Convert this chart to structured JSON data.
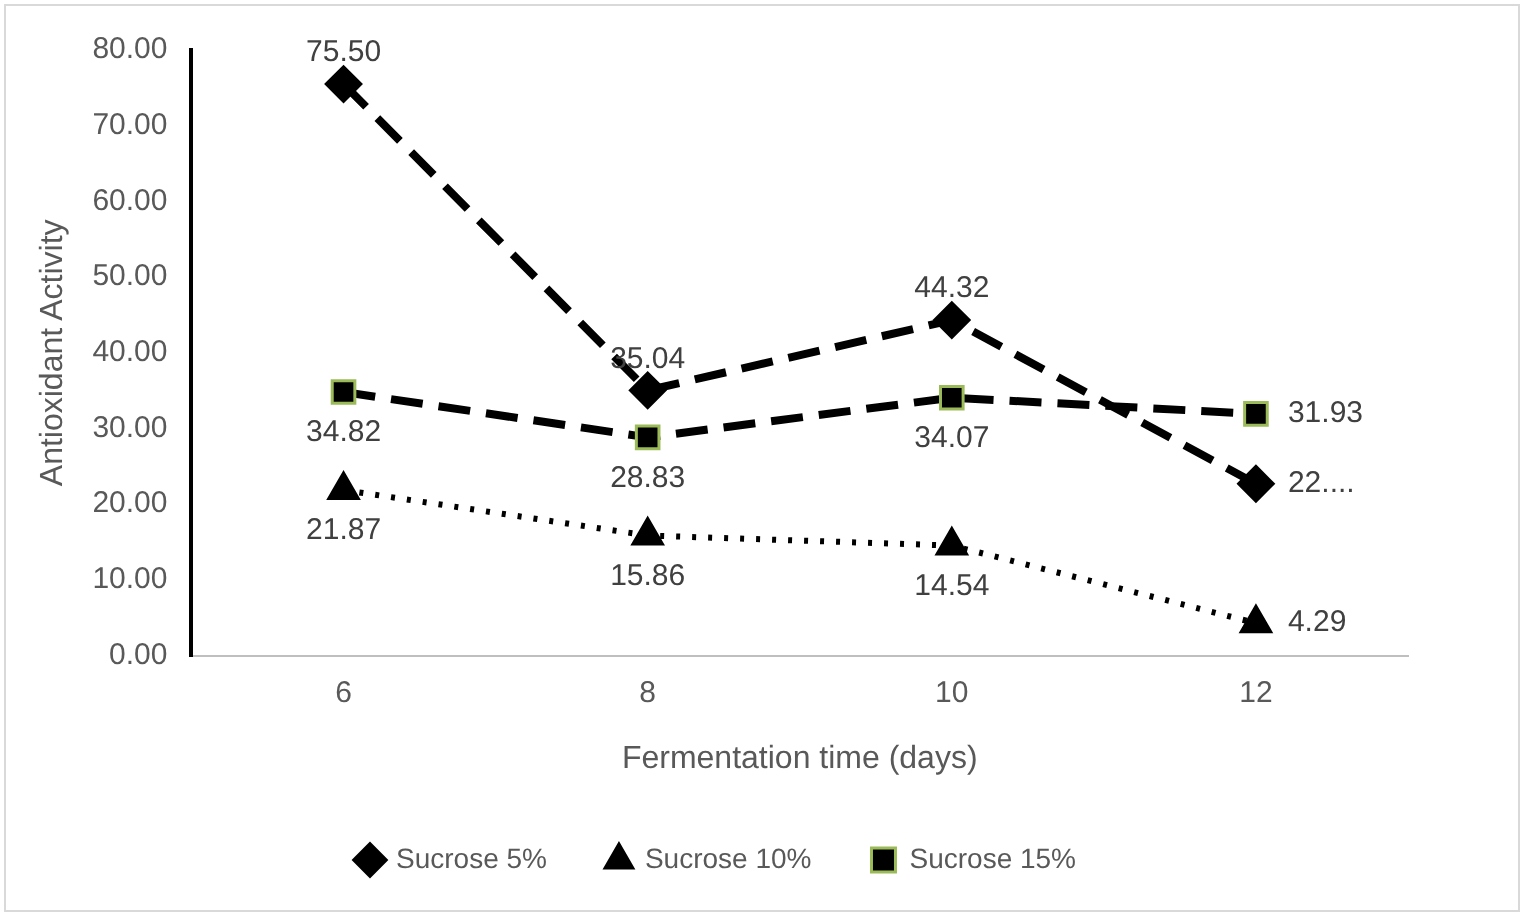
{
  "chart_data": {
    "type": "line",
    "xlabel": "Fermentation time (days)",
    "ylabel": "Antioxidant Activity",
    "categories": [
      "6",
      "8",
      "10",
      "12"
    ],
    "series": [
      {
        "name": "Sucrose 5%",
        "color": "#000000",
        "marker": "diamond",
        "line_style": "dashed",
        "values": [
          75.5,
          35.04,
          44.32,
          22.7
        ],
        "value_labels": [
          "75.50",
          "35.04",
          "44.32",
          "22...."
        ]
      },
      {
        "name": "Sucrose 10%",
        "color": "#000000",
        "marker": "triangle",
        "line_style": "dotted",
        "values": [
          21.87,
          15.86,
          14.54,
          4.29
        ],
        "value_labels": [
          "21.87",
          "15.86",
          "14.54",
          "4.29"
        ]
      },
      {
        "name": "Sucrose 15%",
        "color": "#000000",
        "marker": "square",
        "line_style": "dashed",
        "values": [
          34.82,
          28.83,
          34.07,
          31.93
        ],
        "value_labels": [
          "34.82",
          "28.83",
          "34.07",
          "31.93"
        ]
      }
    ],
    "ylim": [
      0,
      80
    ],
    "yticks": [
      {
        "value": 0,
        "label": "0.00"
      },
      {
        "value": 10,
        "label": "10.00"
      },
      {
        "value": 20,
        "label": "20.00"
      },
      {
        "value": 30,
        "label": "30.00"
      },
      {
        "value": 40,
        "label": "40.00"
      },
      {
        "value": 50,
        "label": "50.00"
      },
      {
        "value": 60,
        "label": "60.00"
      },
      {
        "value": 70,
        "label": "70.00"
      },
      {
        "value": 80,
        "label": "80.00"
      }
    ],
    "grid": false,
    "legend": "bottom"
  }
}
